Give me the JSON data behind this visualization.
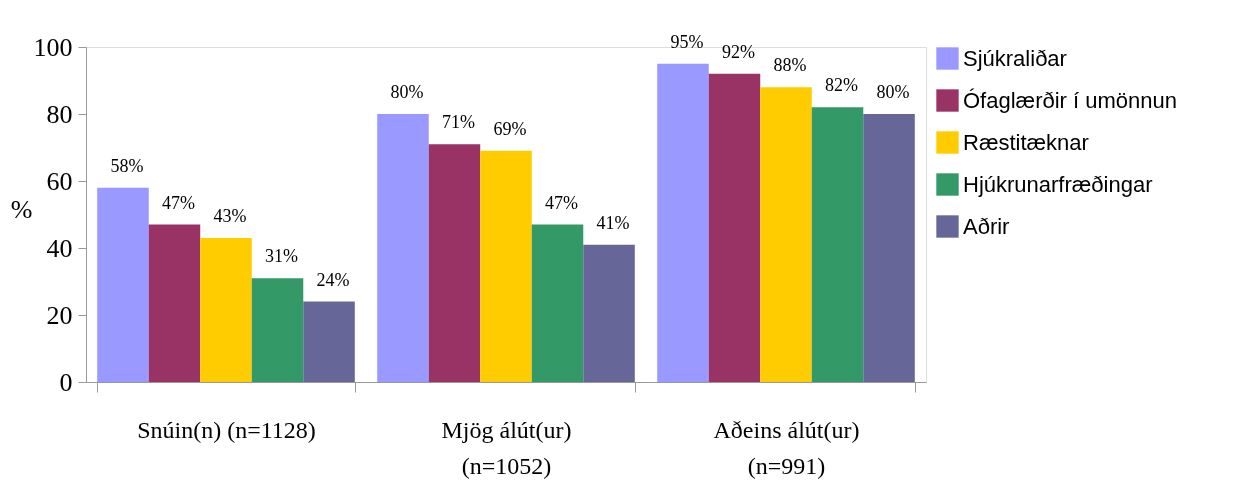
{
  "chart_data": {
    "type": "bar",
    "ylabel": "%",
    "categories": [
      "Snúin(n) (n=1128)",
      "Mjög álút(ur) (n=1052)",
      "Aðeins álút(ur) (n=991)"
    ],
    "series": [
      {
        "name": "Sjúkraliðar",
        "color": "#9999ff",
        "values": [
          58,
          80,
          95
        ],
        "value_labels": [
          "58%",
          "80%",
          "95%"
        ]
      },
      {
        "name": "Ófaglærðir í umönnun",
        "color": "#993366",
        "values": [
          47,
          71,
          92
        ],
        "value_labels": [
          "47%",
          "71%",
          "92%"
        ]
      },
      {
        "name": "Ræstitæknar",
        "color": "#ffcc00",
        "values": [
          43,
          69,
          88
        ],
        "value_labels": [
          "43%",
          "69%",
          "88%"
        ]
      },
      {
        "name": "Hjúkrunarfræðingar",
        "color": "#339966",
        "values": [
          31,
          47,
          82
        ],
        "value_labels": [
          "31%",
          "47%",
          "82%"
        ]
      },
      {
        "name": "Aðrir",
        "color": "#666699",
        "values": [
          24,
          41,
          80
        ],
        "value_labels": [
          "24%",
          "41%",
          "80%"
        ]
      }
    ],
    "ylim": [
      0,
      100
    ],
    "yticks": [
      0,
      20,
      40,
      60,
      80,
      100
    ],
    "grid": false,
    "legend": "right"
  }
}
